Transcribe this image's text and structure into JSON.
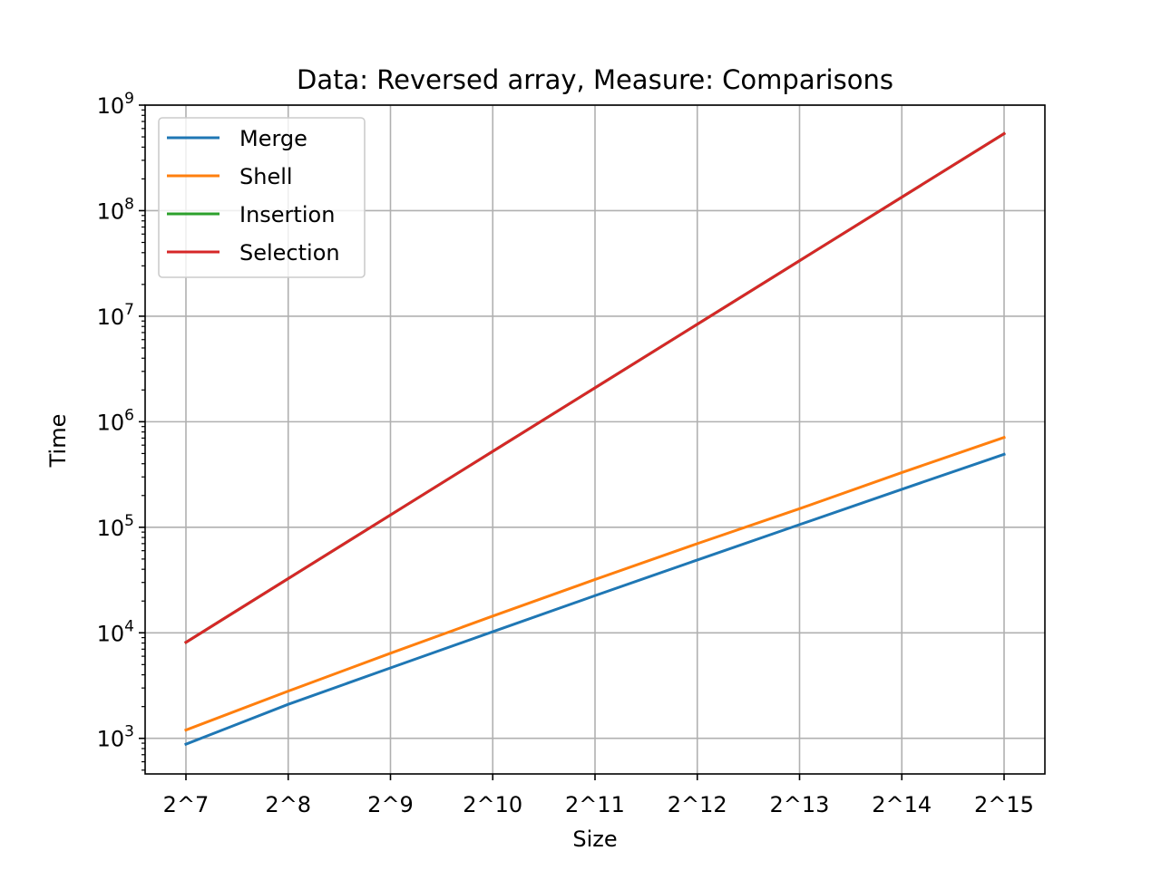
{
  "chart_data": {
    "type": "line",
    "title": "Data: Reversed array, Measure: Comparisons",
    "xlabel": "Size",
    "ylabel": "Time",
    "y_scale": "log",
    "ylim": [
      460,
      1000000000
    ],
    "grid": true,
    "legend_position": "top-left",
    "categories": [
      "2^7",
      "2^8",
      "2^9",
      "2^10",
      "2^11",
      "2^12",
      "2^13",
      "2^14",
      "2^15"
    ],
    "y_ticks": [
      {
        "base": "10",
        "exp": "3",
        "value": 1000
      },
      {
        "base": "10",
        "exp": "4",
        "value": 10000
      },
      {
        "base": "10",
        "exp": "5",
        "value": 100000
      },
      {
        "base": "10",
        "exp": "6",
        "value": 1000000
      },
      {
        "base": "10",
        "exp": "7",
        "value": 10000000
      },
      {
        "base": "10",
        "exp": "8",
        "value": 100000000
      },
      {
        "base": "10",
        "exp": "9",
        "value": 1000000000
      }
    ],
    "series": [
      {
        "name": "Merge",
        "color": "#1f77b4",
        "values": [
          880,
          2100,
          4650,
          10240,
          22500,
          49000,
          106000,
          229000,
          491000
        ]
      },
      {
        "name": "Shell",
        "color": "#ff7f0e",
        "values": [
          1200,
          2800,
          6400,
          14400,
          32000,
          70000,
          150000,
          330000,
          710000
        ]
      },
      {
        "name": "Insertion",
        "color": "#2ca02c",
        "values": [
          8128,
          32640,
          130816,
          523776,
          2096128,
          8386560,
          33550336,
          134209536,
          536854528
        ]
      },
      {
        "name": "Selection",
        "color": "#d62728",
        "values": [
          8128,
          32640,
          130816,
          523776,
          2096128,
          8386560,
          33550336,
          134209536,
          536854528
        ]
      }
    ]
  }
}
